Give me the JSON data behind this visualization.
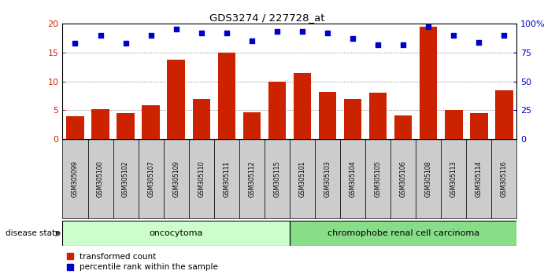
{
  "title": "GDS3274 / 227728_at",
  "samples": [
    "GSM305099",
    "GSM305100",
    "GSM305102",
    "GSM305107",
    "GSM305109",
    "GSM305110",
    "GSM305111",
    "GSM305112",
    "GSM305115",
    "GSM305101",
    "GSM305103",
    "GSM305104",
    "GSM305105",
    "GSM305106",
    "GSM305108",
    "GSM305113",
    "GSM305114",
    "GSM305116"
  ],
  "transformed_count": [
    4.0,
    5.2,
    4.5,
    5.8,
    13.8,
    7.0,
    15.0,
    4.6,
    9.9,
    11.5,
    8.2,
    7.0,
    8.1,
    4.1,
    19.5,
    5.0,
    4.5,
    8.4
  ],
  "percentile_rank": [
    83,
    90,
    83,
    90,
    95,
    92,
    92,
    85,
    93,
    93,
    92,
    87,
    82,
    82,
    97,
    90,
    84,
    90
  ],
  "oncocytoma_count": 9,
  "chromophobe_count": 9,
  "ylim_left": [
    0,
    20
  ],
  "ylim_right": [
    0,
    100
  ],
  "yticks_left": [
    0,
    5,
    10,
    15,
    20
  ],
  "yticks_right": [
    0,
    25,
    50,
    75,
    100
  ],
  "bar_color": "#cc2200",
  "scatter_color": "#0000cc",
  "oncocytoma_bg": "#ccffcc",
  "chromophobe_bg": "#88dd88",
  "xlabel_bg": "#cccccc",
  "legend_red_label": "transformed count",
  "legend_blue_label": "percentile rank within the sample"
}
